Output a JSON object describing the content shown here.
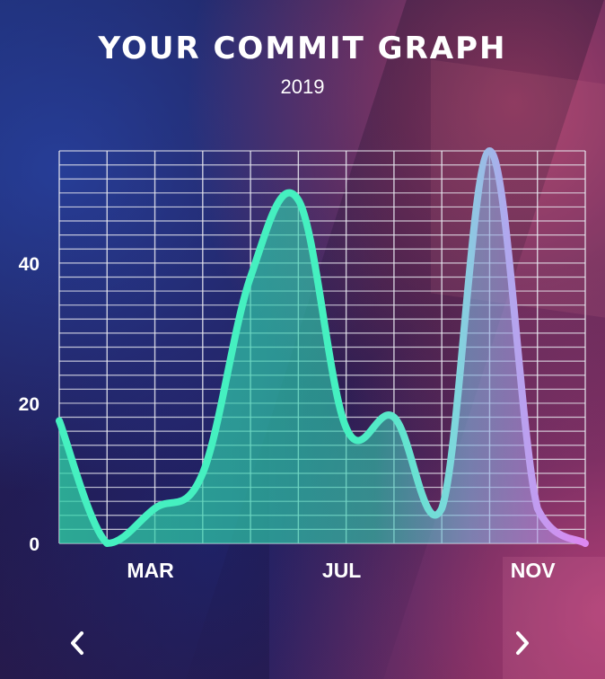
{
  "title": "YOUR COMMIT GRAPH",
  "subtitle": "2019",
  "nav": {
    "prev_icon": "chevron-left-icon",
    "next_icon": "chevron-right-icon"
  },
  "colors": {
    "line_start": "#45f0c0",
    "line_mid": "#6fd6d6",
    "line_end": "#d98cf2",
    "grid": "#e8e8f0"
  },
  "chart_data": {
    "type": "area",
    "title": "YOUR COMMIT GRAPH",
    "subtitle": "2019",
    "x": [
      1,
      2,
      3,
      4,
      5,
      6,
      7,
      8,
      9,
      10,
      11,
      12
    ],
    "values": [
      17.5,
      0,
      5,
      10,
      38,
      49,
      16.5,
      18,
      5,
      56,
      5,
      0
    ],
    "x_tick_labels": [
      {
        "x": 3,
        "label": "MAR"
      },
      {
        "x": 7,
        "label": "JUL"
      },
      {
        "x": 11,
        "label": "NOV"
      }
    ],
    "y_ticks": [
      0,
      20,
      40
    ],
    "xlim": [
      1,
      12
    ],
    "ylim": [
      0,
      56
    ],
    "grid": true,
    "legend": "none"
  }
}
